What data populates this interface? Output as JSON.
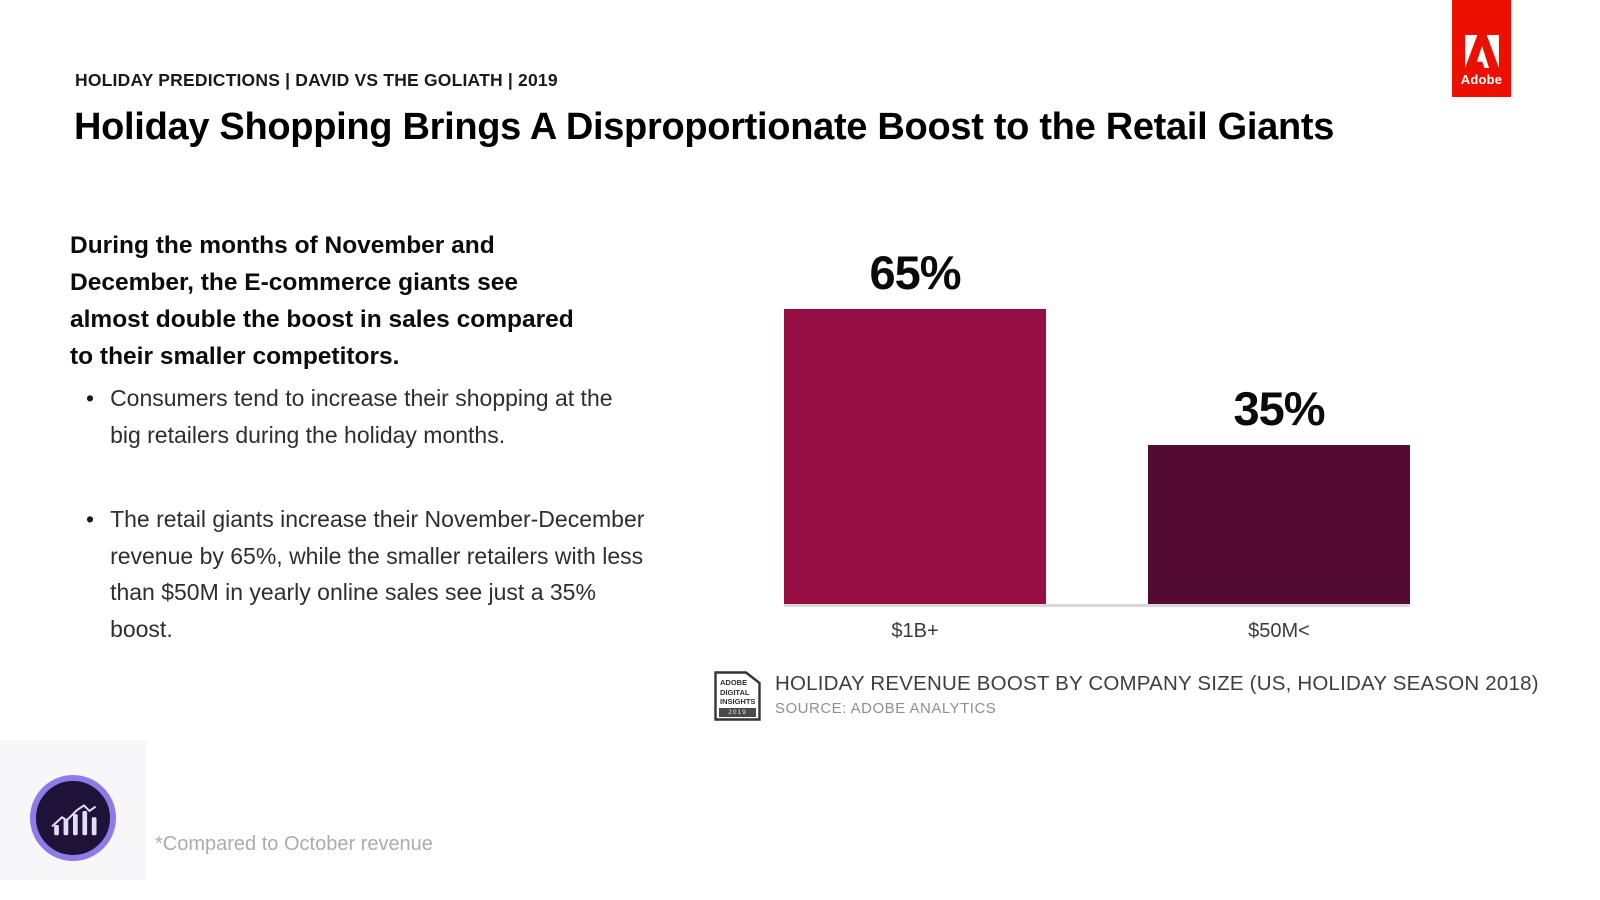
{
  "page": {
    "eyebrow": "HOLIDAY PREDICTIONS | DAVID VS THE GOLIATH | 2019",
    "title": "Holiday Shopping Brings A Disproportionate Boost to the Retail Giants",
    "footnote": "*Compared to October revenue"
  },
  "brand": {
    "logo_text": "Adobe",
    "logo_color": "#eb1000"
  },
  "body": {
    "intro": "During the months of November and December, the E-commerce giants see almost double the boost in sales compared to their smaller competitors.",
    "bullet_glyph": "•",
    "bullets": [
      "Consumers tend to increase their shopping at the big retailers during the holiday months.",
      "The retail giants increase their November-December revenue by 65%, while the smaller retailers with less than $50M in yearly online sales see just a 35% boost."
    ]
  },
  "chart_data": {
    "type": "bar",
    "categories": [
      "$1B+",
      "$50M<"
    ],
    "values": [
      65,
      35
    ],
    "value_labels": [
      "65%",
      "35%"
    ],
    "bar_colors": [
      "#970e45",
      "#540b33"
    ],
    "ylim": [
      0,
      65
    ],
    "grid": false,
    "legend": false,
    "title": "HOLIDAY REVENUE BOOST BY COMPANY SIZE (US, HOLIDAY SEASON 2018)",
    "source": "SOURCE: ADOBE ANALYTICS",
    "baseline_color": "#d8d8d8"
  },
  "badge": {
    "line1": "ADOBE",
    "line2": "DIGITAL",
    "line3": "INSIGHTS",
    "year": "2019"
  },
  "icons": {
    "analytics_ring_color": "#8d7ce8",
    "analytics_bg_color": "#1f1239",
    "analytics_glyph_color": "#e2dcf6"
  }
}
